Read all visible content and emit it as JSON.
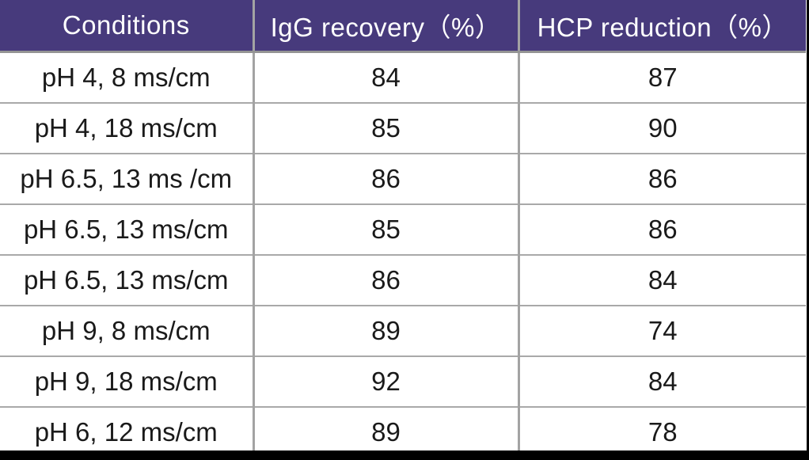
{
  "table": {
    "columns": [
      {
        "label": "Conditions"
      },
      {
        "label": "IgG recovery（%）"
      },
      {
        "label": "HCP reduction（%）"
      }
    ],
    "rows": [
      {
        "condition": "pH 4, 8 ms/cm",
        "igg_recovery": "84",
        "hcp_reduction": "87"
      },
      {
        "condition": "pH 4, 18 ms/cm",
        "igg_recovery": "85",
        "hcp_reduction": "90"
      },
      {
        "condition": "pH 6.5, 13 ms /cm",
        "igg_recovery": "86",
        "hcp_reduction": "86"
      },
      {
        "condition": "pH 6.5, 13 ms/cm",
        "igg_recovery": "85",
        "hcp_reduction": "86"
      },
      {
        "condition": "pH 6.5, 13 ms/cm",
        "igg_recovery": "86",
        "hcp_reduction": "84"
      },
      {
        "condition": "pH 9, 8 ms/cm",
        "igg_recovery": "89",
        "hcp_reduction": "74"
      },
      {
        "condition": "pH 9, 18 ms/cm",
        "igg_recovery": "92",
        "hcp_reduction": "84"
      },
      {
        "condition": "pH 6, 12 ms/cm",
        "igg_recovery": "89",
        "hcp_reduction": "78"
      }
    ]
  },
  "colors": {
    "header_bg": "#473a7c",
    "header_text": "#ffffff",
    "header_bottom_rule": "#949494",
    "grid_line": "#a3a3a3",
    "body_text": "#1a1a1a",
    "bottom_rule": "#000000",
    "right_rule": "#000000"
  },
  "chart_data": {
    "type": "table",
    "title": "",
    "columns": [
      "Conditions",
      "IgG recovery（%）",
      "HCP reduction（%）"
    ],
    "rows": [
      [
        "pH 4, 8 ms/cm",
        84,
        87
      ],
      [
        "pH 4, 18 ms/cm",
        85,
        90
      ],
      [
        "pH 6.5, 13 ms /cm",
        86,
        86
      ],
      [
        "pH 6.5, 13 ms/cm",
        85,
        86
      ],
      [
        "pH 6.5, 13 ms/cm",
        86,
        84
      ],
      [
        "pH 9, 8 ms/cm",
        89,
        74
      ],
      [
        "pH 9, 18 ms/cm",
        92,
        84
      ],
      [
        "pH 6, 12 ms/cm",
        89,
        78
      ]
    ]
  }
}
